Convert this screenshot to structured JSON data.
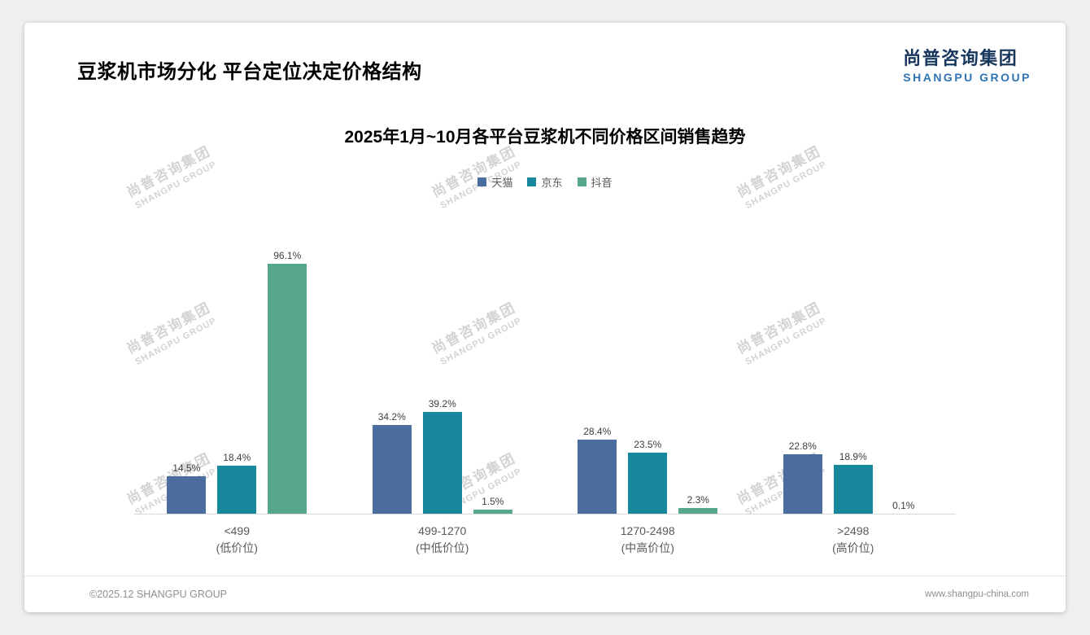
{
  "header": {
    "title": "豆浆机市场分化 平台定位决定价格结构"
  },
  "logo": {
    "cn": "尚普咨询集团",
    "en": "SHANGPU GROUP"
  },
  "watermark": {
    "line1": "尚普咨询集团",
    "line2": "SHANGPU GROUP"
  },
  "footer": {
    "left": "©2025.12 SHANGPU GROUP",
    "right": "www.shangpu-china.com"
  },
  "chart_data": {
    "type": "bar",
    "title": "2025年1月~10月各平台豆浆机不同价格区间销售趋势",
    "unit": "%",
    "ylim": [
      0,
      100
    ],
    "grid": false,
    "legend_position": "top",
    "categories": [
      {
        "label": "<499",
        "sublabel": "(低价位)"
      },
      {
        "label": "499-1270",
        "sublabel": "(中低价位)"
      },
      {
        "label": "1270-2498",
        "sublabel": "(中高价位)"
      },
      {
        "label": ">2498",
        "sublabel": "(高价位)"
      }
    ],
    "series": [
      {
        "name": "天猫",
        "key": "tmall",
        "color": "#4a6d9e",
        "values": [
          14.5,
          34.2,
          28.4,
          22.8
        ]
      },
      {
        "name": "京东",
        "key": "jd",
        "color": "#17879c",
        "values": [
          18.4,
          39.2,
          23.5,
          18.9
        ]
      },
      {
        "name": "抖音",
        "key": "douyin",
        "color": "#57a78d",
        "values": [
          96.1,
          1.5,
          2.3,
          0.1
        ]
      }
    ]
  }
}
